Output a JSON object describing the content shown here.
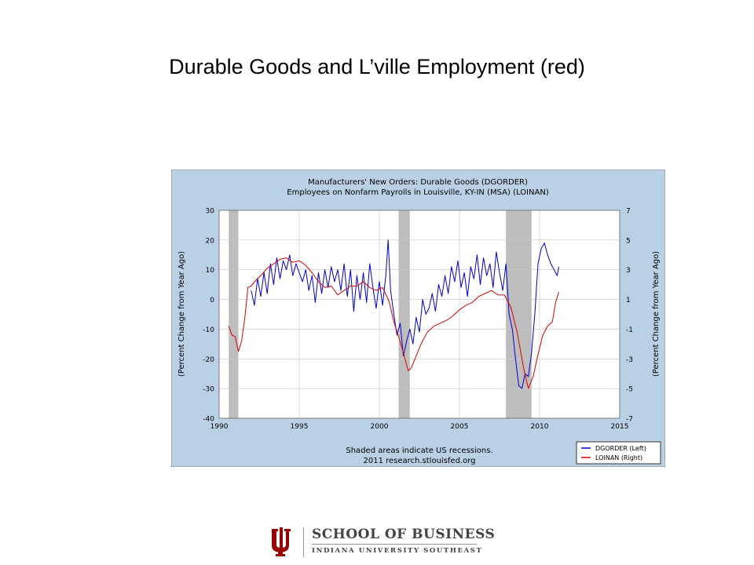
{
  "slide": {
    "title": "Durable Goods and L’ville Employment (red)"
  },
  "chart_data": {
    "type": "line",
    "title": "Manufacturers' New Orders: Durable Goods (DGORDER)",
    "subtitle": "Employees on Nonfarm Payrolls in Louisville, KY-IN (MSA) (LOINAN)",
    "ylabel_left": "(Percent Change from Year Ago)",
    "ylabel_right": "(Percent Change from Year Ago)",
    "xlim": [
      1990,
      2015
    ],
    "ylim_left": [
      -40,
      30
    ],
    "ylim_right": [
      -7,
      7
    ],
    "x_ticks": [
      "1990",
      "1995",
      "2000",
      "2005",
      "2010",
      "2015"
    ],
    "y_ticks_left": [
      "30",
      "20",
      "10",
      "0",
      "-10",
      "-20",
      "-30",
      "-40"
    ],
    "y_ticks_right": [
      "7",
      "5",
      "3",
      "1",
      "-1",
      "-3",
      "-5",
      "-7"
    ],
    "grid": true,
    "legend_position": "bottom-right",
    "recessions": [
      [
        1990.6,
        1991.2
      ],
      [
        2001.2,
        2001.9
      ],
      [
        2007.9,
        2009.5
      ]
    ],
    "note_line1": "Shaded areas indicate US recessions.",
    "note_line2": "2011 research.stlouisfed.org",
    "colors": {
      "background": "#b9d0e5",
      "plot": "#ffffff",
      "grid": "#c8c8c8",
      "recession": "#bdbdbd",
      "dgorder": "#0000cc",
      "loinan": "#dd0000"
    },
    "series": [
      {
        "name": "DGORDER (Left)",
        "axis": "left",
        "x": [
          1992.0,
          1992.2,
          1992.4,
          1992.6,
          1992.8,
          1993.0,
          1993.2,
          1993.4,
          1993.6,
          1993.8,
          1994.0,
          1994.2,
          1994.4,
          1994.6,
          1994.8,
          1995.0,
          1995.2,
          1995.4,
          1995.6,
          1995.8,
          1996.0,
          1996.2,
          1996.4,
          1996.6,
          1996.8,
          1997.0,
          1997.2,
          1997.4,
          1997.6,
          1997.8,
          1998.0,
          1998.2,
          1998.4,
          1998.6,
          1998.8,
          1999.0,
          1999.2,
          1999.4,
          1999.6,
          1999.8,
          2000.0,
          2000.2,
          2000.4,
          2000.55,
          2000.7,
          2000.9,
          2001.1,
          2001.3,
          2001.5,
          2001.7,
          2001.9,
          2002.1,
          2002.3,
          2002.5,
          2002.7,
          2002.9,
          2003.1,
          2003.3,
          2003.5,
          2003.7,
          2003.9,
          2004.1,
          2004.3,
          2004.5,
          2004.7,
          2004.9,
          2005.1,
          2005.3,
          2005.5,
          2005.7,
          2005.9,
          2006.1,
          2006.3,
          2006.5,
          2006.7,
          2006.9,
          2007.1,
          2007.3,
          2007.5,
          2007.7,
          2007.9,
          2008.1,
          2008.3,
          2008.5,
          2008.7,
          2008.9,
          2009.1,
          2009.3,
          2009.5,
          2009.7,
          2009.9,
          2010.1,
          2010.3,
          2010.5,
          2010.7,
          2010.9,
          2011.1,
          2011.2
        ],
        "values": [
          3,
          -2,
          7,
          1,
          9,
          2,
          12,
          5,
          14,
          7,
          13,
          10,
          15,
          8,
          12,
          9,
          6,
          10,
          3,
          8,
          -1,
          9,
          2,
          10,
          4,
          11,
          6,
          10,
          3,
          12,
          1,
          10,
          -4,
          8,
          0,
          9,
          -1,
          12,
          4,
          -3,
          6,
          -2,
          8,
          20,
          3,
          -5,
          -12,
          -8,
          -19,
          -14,
          -10,
          -15,
          -6,
          -11,
          0,
          -5,
          -3,
          2,
          -4,
          5,
          1,
          8,
          2,
          11,
          6,
          13,
          4,
          9,
          1,
          11,
          7,
          15,
          5,
          14,
          8,
          12,
          4,
          16,
          9,
          3,
          12,
          -5,
          -10,
          -20,
          -29,
          -30,
          -25,
          -26,
          -18,
          -5,
          12,
          17,
          19,
          15,
          12,
          10,
          8,
          11
        ]
      },
      {
        "name": "LOINAN (Right)",
        "axis": "right",
        "x": [
          1990.6,
          1990.8,
          1991.0,
          1991.2,
          1991.4,
          1991.6,
          1991.8,
          1992.0,
          1992.3,
          1992.6,
          1993.0,
          1993.4,
          1993.8,
          1994.2,
          1994.6,
          1995.0,
          1995.4,
          1995.8,
          1996.2,
          1996.6,
          1997.0,
          1997.4,
          1997.8,
          1998.2,
          1998.6,
          1999.0,
          1999.4,
          1999.8,
          2000.2,
          2000.6,
          2000.9,
          2001.2,
          2001.5,
          2001.8,
          2002.0,
          2002.3,
          2002.6,
          2003.0,
          2003.4,
          2003.8,
          2004.2,
          2004.6,
          2005.0,
          2005.4,
          2005.8,
          2006.2,
          2006.6,
          2007.0,
          2007.4,
          2007.8,
          2008.2,
          2008.6,
          2009.0,
          2009.3,
          2009.6,
          2009.9,
          2010.2,
          2010.5,
          2010.8,
          2011.0,
          2011.2
        ],
        "values": [
          -0.8,
          -1.4,
          -1.5,
          -2.5,
          -1.8,
          -0.3,
          1.8,
          1.9,
          2.3,
          2.6,
          3.1,
          3.4,
          3.7,
          3.8,
          3.5,
          3.6,
          3.3,
          2.8,
          2.2,
          1.8,
          1.9,
          1.3,
          1.6,
          1.9,
          1.9,
          2.2,
          1.8,
          1.6,
          1.8,
          0.9,
          -0.5,
          -1.5,
          -2.6,
          -3.8,
          -3.6,
          -2.8,
          -2.0,
          -1.2,
          -0.8,
          -0.6,
          -0.4,
          -0.1,
          0.3,
          0.6,
          0.8,
          1.2,
          1.4,
          1.6,
          1.3,
          1.3,
          0.5,
          -1.2,
          -3.6,
          -5.0,
          -4.2,
          -2.7,
          -1.4,
          -0.8,
          -0.5,
          0.8,
          1.5
        ]
      }
    ]
  },
  "branding": {
    "school": "SCHOOL OF BUSINESS",
    "university": "INDIANA UNIVERSITY SOUTHEAST",
    "logo_color": "#990000"
  }
}
